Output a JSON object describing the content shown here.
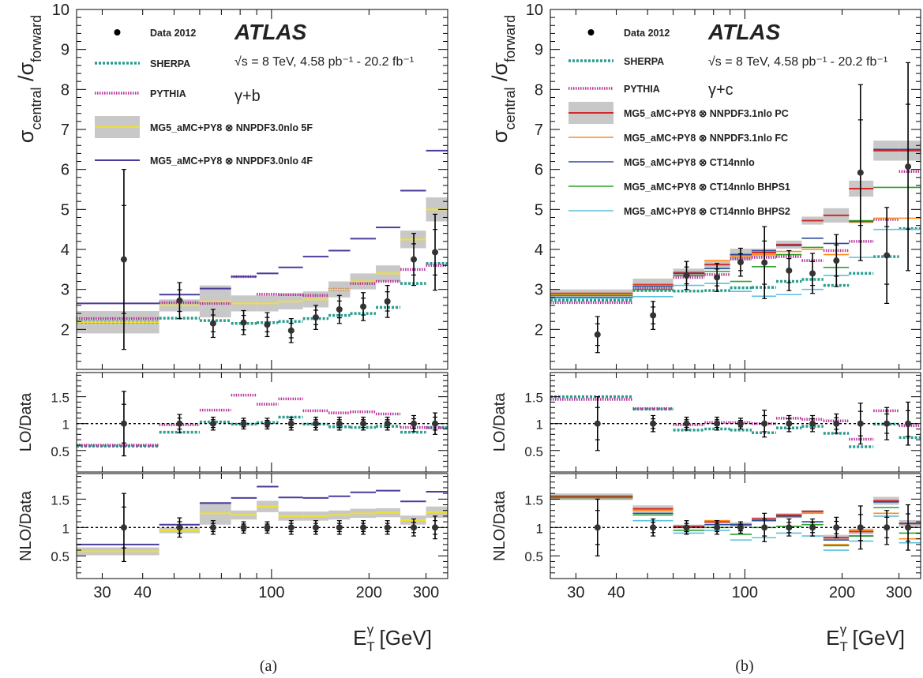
{
  "figure": {
    "caption_a": "(a)",
    "caption_b": "(b)"
  },
  "chart_data": [
    {
      "panel": "a",
      "type": "histogram-ratio",
      "experiment_label": "ATLAS",
      "energy_label": "√s = 8 TeV, 4.58 pb⁻¹ - 20.2 fb⁻¹",
      "process_label": "γ+b",
      "xlabel": "E_T^γ [GeV]",
      "xscale": "log",
      "xlim": [
        25,
        350
      ],
      "xticks": [
        "30",
        "40",
        "100",
        "200",
        "300"
      ],
      "bin_edges": [
        25,
        45,
        60,
        75,
        90,
        105,
        125,
        150,
        175,
        210,
        250,
        300,
        350
      ],
      "main": {
        "ylabel": "σ_central / σ_forward",
        "ylim": [
          1.0,
          10.0
        ],
        "yticks": [
          "2",
          "3",
          "4",
          "5",
          "6",
          "7",
          "8",
          "9",
          "10"
        ],
        "legend": [
          "Data 2012",
          "SHERPA",
          "PYTHIA",
          "MG5_aMC+PY8 ⊗ NNPDF3.0nlo 5F",
          "MG5_aMC+PY8 ⊗ NNPDF3.0nlo 4F"
        ],
        "data": {
          "name": "Data 2012",
          "x": [
            35,
            52,
            66,
            82,
            97,
            115,
            137,
            162,
            192,
            228,
            275,
            320
          ],
          "y": [
            3.75,
            2.72,
            2.15,
            2.17,
            2.12,
            1.97,
            2.3,
            2.5,
            2.57,
            2.7,
            3.75,
            3.93
          ],
          "err": [
            2.25,
            0.45,
            0.35,
            0.3,
            0.3,
            0.3,
            0.3,
            0.35,
            0.35,
            0.4,
            0.65,
            0.95
          ]
        },
        "series": [
          {
            "name": "SHERPA",
            "values": [
              2.18,
              2.28,
              2.22,
              2.15,
              2.17,
              2.2,
              2.27,
              2.35,
              2.4,
              2.55,
              3.15,
              3.65
            ]
          },
          {
            "name": "PYTHIA",
            "values": [
              2.27,
              2.67,
              2.65,
              3.32,
              2.88,
              2.87,
              2.85,
              3.0,
              3.15,
              3.2,
              3.5,
              3.6
            ]
          },
          {
            "name": "MG5_aMC+PY8 ⊗ NNPDF3.0nlo 5F",
            "values": [
              2.18,
              2.6,
              2.7,
              2.65,
              2.65,
              2.7,
              2.75,
              3.0,
              3.2,
              3.4,
              4.25,
              5.0
            ],
            "band": [
              0.28,
              0.15,
              0.4,
              0.2,
              0.2,
              0.2,
              0.2,
              0.2,
              0.2,
              0.2,
              0.22,
              0.3
            ]
          },
          {
            "name": "MG5_aMC+PY8 ⊗ NNPDF3.0nlo 4F",
            "values": [
              2.65,
              2.87,
              3.02,
              3.32,
              3.4,
              3.55,
              3.82,
              3.97,
              4.27,
              4.55,
              5.47,
              6.47
            ]
          }
        ]
      },
      "lo_ratio": {
        "ylabel": "LO/Data",
        "ylim": [
          0.1,
          1.95
        ],
        "yticks": [
          "0.5",
          "1",
          "1.5"
        ],
        "data_err": [
          0.6,
          0.17,
          0.12,
          0.1,
          0.1,
          0.12,
          0.12,
          0.12,
          0.12,
          0.12,
          0.15,
          0.2
        ],
        "series": [
          {
            "name": "SHERPA",
            "values": [
              0.58,
              0.84,
              1.03,
              0.99,
              1.02,
              1.12,
              0.99,
              0.94,
              0.93,
              0.95,
              0.84,
              0.93
            ]
          },
          {
            "name": "PYTHIA",
            "values": [
              0.6,
              0.98,
              1.25,
              1.53,
              1.36,
              1.46,
              1.24,
              1.2,
              1.22,
              1.18,
              0.93,
              0.92
            ]
          }
        ]
      },
      "nlo_ratio": {
        "ylabel": "NLO/Data",
        "ylim": [
          0.1,
          1.95
        ],
        "yticks": [
          "0.5",
          "1",
          "1.5"
        ],
        "data_err": [
          0.6,
          0.17,
          0.12,
          0.1,
          0.1,
          0.12,
          0.12,
          0.12,
          0.12,
          0.12,
          0.15,
          0.2
        ],
        "series": [
          {
            "name": "MG5_aMC+PY8 ⊗ NNPDF3.0nlo 5F",
            "values": [
              0.58,
              0.95,
              1.25,
              1.22,
              1.37,
              1.2,
              1.2,
              1.22,
              1.25,
              1.26,
              1.13,
              1.27
            ],
            "band": [
              0.07,
              0.05,
              0.2,
              0.08,
              0.1,
              0.08,
              0.08,
              0.08,
              0.08,
              0.08,
              0.08,
              0.1
            ]
          },
          {
            "name": "MG5_aMC+PY8 ⊗ NNPDF3.0nlo 4F",
            "values": [
              0.7,
              1.05,
              1.43,
              1.52,
              1.72,
              1.53,
              1.52,
              1.55,
              1.62,
              1.65,
              1.46,
              1.63
            ]
          }
        ]
      }
    },
    {
      "panel": "b",
      "type": "histogram-ratio",
      "experiment_label": "ATLAS",
      "energy_label": "√s = 8 TeV, 4.58 pb⁻¹ - 20.2 fb⁻¹",
      "process_label": "γ+c",
      "xlabel": "E_T^γ [GeV]",
      "xscale": "log",
      "xlim": [
        25,
        350
      ],
      "xticks": [
        "30",
        "40",
        "100",
        "200",
        "300"
      ],
      "bin_edges": [
        25,
        45,
        60,
        75,
        90,
        105,
        125,
        150,
        175,
        210,
        250,
        300,
        350
      ],
      "main": {
        "ylabel": "σ_central / σ_forward",
        "ylim": [
          1.0,
          10.0
        ],
        "yticks": [
          "2",
          "3",
          "4",
          "5",
          "6",
          "7",
          "8",
          "9",
          "10"
        ],
        "legend": [
          "Data 2012",
          "SHERPA",
          "PYTHIA",
          "MG5_aMC+PY8 ⊗ NNPDF3.1nlo PC",
          "MG5_aMC+PY8 ⊗ NNPDF3.1nlo FC",
          "MG5_aMC+PY8 ⊗ CT14nnlo",
          "MG5_aMC+PY8 ⊗ CT14nnlo BHPS1",
          "MG5_aMC+PY8 ⊗ CT14nnlo BHPS2"
        ],
        "data": {
          "name": "Data 2012",
          "x": [
            35,
            52,
            66,
            82,
            97,
            115,
            137,
            162,
            192,
            228,
            275,
            320
          ],
          "y": [
            1.87,
            2.35,
            3.35,
            3.3,
            3.68,
            3.67,
            3.47,
            3.4,
            3.72,
            5.92,
            3.85,
            6.07
          ],
          "err": [
            0.45,
            0.35,
            0.35,
            0.35,
            0.35,
            0.9,
            0.5,
            0.5,
            0.65,
            2.2,
            1.2,
            2.6
          ]
        },
        "series": [
          {
            "name": "SHERPA",
            "values": [
              2.73,
              2.97,
              2.96,
              2.97,
              3.04,
              3.05,
              3.2,
              3.25,
              3.1,
              3.4,
              3.82,
              4.52
            ]
          },
          {
            "name": "PYTHIA",
            "values": [
              2.67,
              3.02,
              3.3,
              3.37,
              3.77,
              3.8,
              3.82,
              3.72,
              3.97,
              4.2,
              4.75,
              5.95
            ]
          },
          {
            "name": "MG5_aMC+PY8 ⊗ NNPDF3.1nlo PC",
            "values": [
              2.9,
              3.12,
              3.42,
              3.62,
              3.87,
              3.92,
              4.12,
              4.72,
              4.85,
              5.52,
              6.47,
              6.47
            ],
            "band": [
              0.1,
              0.15,
              0.1,
              0.1,
              0.15,
              0.1,
              0.1,
              0.1,
              0.18,
              0.2,
              0.25,
              0.25
            ]
          },
          {
            "name": "MG5_aMC+PY8 ⊗ NNPDF3.1nlo FC",
            "values": [
              2.88,
              3.1,
              3.4,
              3.72,
              3.82,
              3.87,
              3.95,
              4.0,
              3.87,
              4.68,
              4.78,
              4.78
            ]
          },
          {
            "name": "MG5_aMC+PY8 ⊗ CT14nnlo",
            "values": [
              2.8,
              3.08,
              3.4,
              3.52,
              3.87,
              3.97,
              4.1,
              4.28,
              4.15,
              4.7,
              6.5,
              6.5
            ]
          },
          {
            "name": "MG5_aMC+PY8 ⊗ CT14nnlo BHPS1",
            "values": [
              2.85,
              3.0,
              3.35,
              3.45,
              3.2,
              3.57,
              3.87,
              4.05,
              3.55,
              4.72,
              5.55,
              5.55
            ]
          },
          {
            "name": "MG5_aMC+PY8 ⊗ CT14nnlo BHPS2",
            "values": [
              2.78,
              2.82,
              3.1,
              3.15,
              2.95,
              2.83,
              2.87,
              3.0,
              3.35,
              3.8,
              4.5,
              4.5
            ]
          }
        ]
      },
      "lo_ratio": {
        "ylabel": "LO/Data",
        "ylim": [
          0.1,
          1.95
        ],
        "yticks": [
          "0.5",
          "1",
          "1.5"
        ],
        "data_err": [
          0.5,
          0.15,
          0.12,
          0.12,
          0.1,
          0.25,
          0.15,
          0.15,
          0.18,
          0.38,
          0.3,
          0.4
        ],
        "series": [
          {
            "name": "SHERPA",
            "values": [
              1.5,
              1.27,
              0.88,
              0.9,
              0.88,
              0.83,
              0.92,
              0.95,
              0.82,
              0.57,
              0.99,
              0.74
            ]
          },
          {
            "name": "PYTHIA",
            "values": [
              1.45,
              1.28,
              0.98,
              1.02,
              1.02,
              1.0,
              1.1,
              1.08,
              1.05,
              0.71,
              1.24,
              0.96
            ]
          }
        ]
      },
      "nlo_ratio": {
        "ylabel": "NLO/Data",
        "ylim": [
          0.1,
          1.95
        ],
        "yticks": [
          "0.5",
          "1",
          "1.5"
        ],
        "data_err": [
          0.5,
          0.15,
          0.12,
          0.12,
          0.1,
          0.25,
          0.15,
          0.15,
          0.18,
          0.38,
          0.3,
          0.4
        ],
        "series": [
          {
            "name": "MG5_aMC+PY8 ⊗ NNPDF3.1nlo PC",
            "values": [
              1.55,
              1.33,
              1.02,
              1.1,
              1.05,
              1.15,
              1.22,
              1.28,
              0.82,
              0.93,
              1.47,
              1.07
            ],
            "band": [
              0.05,
              0.06,
              0.03,
              0.03,
              0.04,
              0.03,
              0.03,
              0.03,
              0.05,
              0.05,
              0.07,
              0.06
            ]
          },
          {
            "name": "MG5_aMC+PY8 ⊗ NNPDF3.1nlo FC",
            "values": [
              1.52,
              1.3,
              1.0,
              1.12,
              1.05,
              1.12,
              1.18,
              1.25,
              0.7,
              0.95,
              1.25,
              0.8
            ]
          },
          {
            "name": "MG5_aMC+PY8 ⊗ CT14nnlo",
            "values": [
              1.5,
              1.25,
              1.0,
              1.05,
              1.05,
              1.12,
              1.2,
              1.1,
              0.78,
              0.85,
              1.45,
              1.07
            ]
          },
          {
            "name": "MG5_aMC+PY8 ⊗ CT14nnlo BHPS1",
            "values": [
              1.53,
              1.22,
              0.95,
              1.0,
              0.88,
              1.0,
              1.02,
              1.05,
              0.68,
              0.85,
              1.35,
              0.9
            ]
          },
          {
            "name": "MG5_aMC+PY8 ⊗ CT14nnlo BHPS2",
            "values": [
              1.5,
              1.12,
              0.9,
              0.95,
              0.78,
              0.82,
              0.9,
              0.85,
              0.6,
              0.76,
              1.2,
              0.73
            ]
          }
        ]
      }
    }
  ],
  "colors": {
    "data": "#000000",
    "sherpa": "#2a9d8f",
    "pythia": "#b5339b",
    "nnpdf30_5f": "#f2e227",
    "nnpdf30_4f": "#4b3b9b",
    "nnpdf31_pc": "#d62728",
    "nnpdf31_fc": "#ff8c1a",
    "ct14nnlo": "#2b4d9a",
    "ct14_bhps1": "#2ca02c",
    "ct14_bhps2": "#5bc0de",
    "band": "#c8c8c8"
  }
}
